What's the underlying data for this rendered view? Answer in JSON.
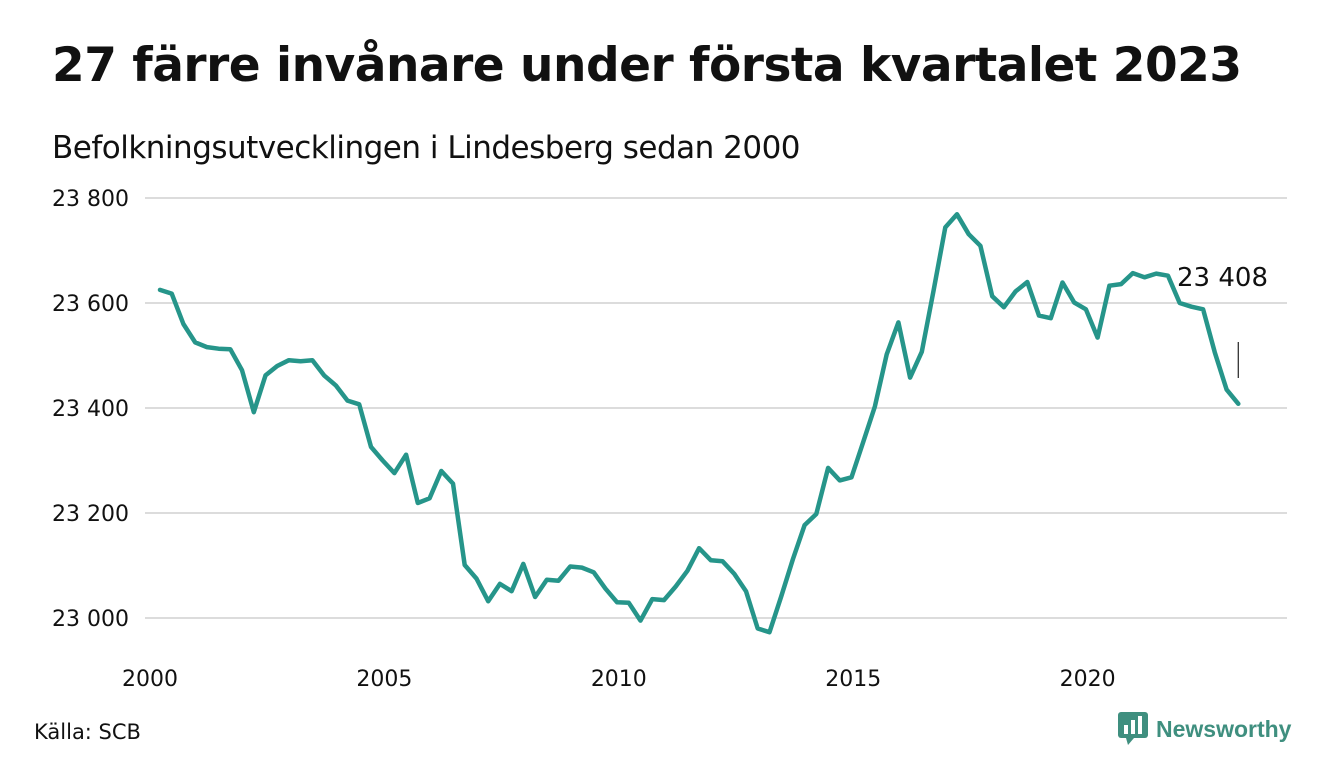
{
  "title": "27 färre invånare under första kvartalet 2023",
  "subtitle": "Befolkningsutvecklingen i Lindesberg sedan 2000",
  "source": "Källa: SCB",
  "brand": {
    "name": "Newsworthy",
    "color": "#3f8f7f",
    "icon": "newsworthy-chart-icon"
  },
  "colors": {
    "line": "#26958a",
    "grid": "#dcdcdc",
    "text": "#111111"
  },
  "chart_data": {
    "type": "line",
    "ylim": [
      22940,
      23800
    ],
    "xlim": [
      2000.0,
      2023.25
    ],
    "y_ticks": [
      23000,
      23200,
      23400,
      23600,
      23800
    ],
    "y_tick_labels": [
      "23 000",
      "23 200",
      "23 400",
      "23 600",
      "23 800"
    ],
    "x_ticks": [
      2000,
      2005,
      2010,
      2015,
      2020
    ],
    "x_tick_labels": [
      "2000",
      "2005",
      "2010",
      "2015",
      "2020"
    ],
    "grid": true,
    "annotation": {
      "text": "23 408",
      "x": 2023.0,
      "y": 23408
    },
    "series": [
      {
        "x": [
          2000.0,
          2000.25,
          2000.5,
          2000.75,
          2001.0,
          2001.25,
          2001.5,
          2001.75,
          2002.0,
          2002.25,
          2002.5,
          2002.75,
          2003.0,
          2003.25,
          2003.5,
          2003.75,
          2004.0,
          2004.25,
          2004.5,
          2004.75,
          2005.0,
          2005.25,
          2005.5,
          2005.75,
          2006.0,
          2006.25,
          2006.5,
          2006.75,
          2007.0,
          2007.25,
          2007.5,
          2007.75,
          2008.0,
          2008.25,
          2008.5,
          2008.75,
          2009.0,
          2009.25,
          2009.5,
          2009.75,
          2010.0,
          2010.25,
          2010.5,
          2010.75,
          2011.0,
          2011.25,
          2011.5,
          2011.75,
          2012.0,
          2012.25,
          2012.5,
          2012.75,
          2013.0,
          2013.25,
          2013.5,
          2013.75,
          2014.0,
          2014.25,
          2014.5,
          2014.75,
          2015.0,
          2015.25,
          2015.5,
          2015.75,
          2016.0,
          2016.25,
          2016.5,
          2016.75,
          2017.0,
          2017.25,
          2017.5,
          2017.75,
          2018.0,
          2018.25,
          2018.5,
          2018.75,
          2019.0,
          2019.25,
          2019.5,
          2019.75,
          2020.0,
          2020.25,
          2020.5,
          2020.75,
          2021.0,
          2021.25,
          2021.5,
          2021.75,
          2022.0,
          2022.25,
          2022.5,
          2022.75,
          2023.0
        ],
        "values": [
          23625,
          23618,
          23560,
          23525,
          23516,
          23513,
          23512,
          23472,
          23392,
          23462,
          23480,
          23491,
          23489,
          23491,
          23462,
          23443,
          23414,
          23407,
          23326,
          23300,
          23276,
          23311,
          23219,
          23228,
          23280,
          23256,
          23101,
          23075,
          23032,
          23065,
          23051,
          23103,
          23040,
          23073,
          23071,
          23098,
          23096,
          23087,
          23056,
          23030,
          23029,
          22995,
          23036,
          23034,
          23060,
          23090,
          23133,
          23110,
          23108,
          23084,
          23051,
          22980,
          22973,
          23041,
          23112,
          23177,
          23198,
          23286,
          23262,
          23268,
          23335,
          23403,
          23502,
          23563,
          23458,
          23507,
          23623,
          23744,
          23769,
          23731,
          23709,
          23613,
          23592,
          23622,
          23640,
          23576,
          23571,
          23639,
          23601,
          23588,
          23534,
          23633,
          23636,
          23657,
          23649,
          23656,
          23652,
          23600,
          23593,
          23588,
          23506,
          23435,
          23408
        ]
      }
    ]
  }
}
